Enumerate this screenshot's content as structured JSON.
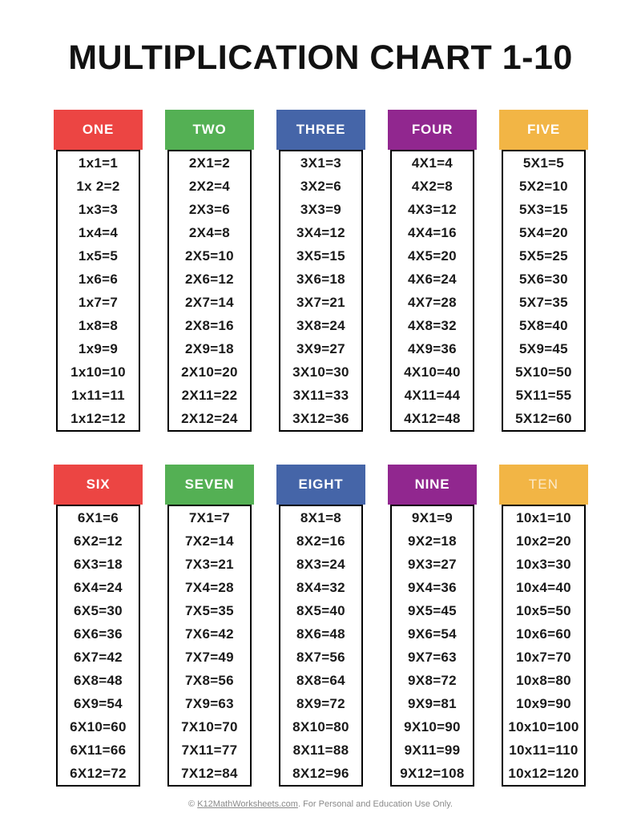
{
  "title": "MULTIPLICATION CHART 1-10",
  "colors": {
    "red": "#ec4543",
    "green": "#54b054",
    "blue": "#4565a8",
    "purple": "#91278f",
    "orange": "#f2b545"
  },
  "cards": [
    {
      "label": "ONE",
      "color": "red",
      "muted_label": false,
      "facts": [
        "1x1=1",
        "1x 2=2",
        "1x3=3",
        "1x4=4",
        "1x5=5",
        "1x6=6",
        "1x7=7",
        "1x8=8",
        "1x9=9",
        "1x10=10",
        "1x11=11",
        "1x12=12"
      ]
    },
    {
      "label": "TWO",
      "color": "green",
      "muted_label": false,
      "facts": [
        "2X1=2",
        "2X2=4",
        "2X3=6",
        "2X4=8",
        "2X5=10",
        "2X6=12",
        "2X7=14",
        "2X8=16",
        "2X9=18",
        "2X10=20",
        "2X11=22",
        "2X12=24"
      ]
    },
    {
      "label": "THREE",
      "color": "blue",
      "muted_label": false,
      "facts": [
        "3X1=3",
        "3X2=6",
        "3X3=9",
        "3X4=12",
        "3X5=15",
        "3X6=18",
        "3X7=21",
        "3X8=24",
        "3X9=27",
        "3X10=30",
        "3X11=33",
        "3X12=36"
      ]
    },
    {
      "label": "FOUR",
      "color": "purple",
      "muted_label": false,
      "facts": [
        "4X1=4",
        "4X2=8",
        "4X3=12",
        "4X4=16",
        "4X5=20",
        "4X6=24",
        "4X7=28",
        "4X8=32",
        "4X9=36",
        "4X10=40",
        "4X11=44",
        "4X12=48"
      ]
    },
    {
      "label": "FIVE",
      "color": "orange",
      "muted_label": false,
      "facts": [
        "5X1=5",
        "5X2=10",
        "5X3=15",
        "5X4=20",
        "5X5=25",
        "5X6=30",
        "5X7=35",
        "5X8=40",
        "5X9=45",
        "5X10=50",
        "5X11=55",
        "5X12=60"
      ]
    },
    {
      "label": "SIX",
      "color": "red",
      "muted_label": false,
      "facts": [
        "6X1=6",
        "6X2=12",
        "6X3=18",
        "6X4=24",
        "6X5=30",
        "6X6=36",
        "6X7=42",
        "6X8=48",
        "6X9=54",
        "6X10=60",
        "6X11=66",
        "6X12=72"
      ]
    },
    {
      "label": "SEVEN",
      "color": "green",
      "muted_label": false,
      "facts": [
        "7X1=7",
        "7X2=14",
        "7X3=21",
        "7X4=28",
        "7X5=35",
        "7X6=42",
        "7X7=49",
        "7X8=56",
        "7X9=63",
        "7X10=70",
        "7X11=77",
        "7X12=84"
      ]
    },
    {
      "label": "EIGHT",
      "color": "blue",
      "muted_label": false,
      "facts": [
        "8X1=8",
        "8X2=16",
        "8X3=24",
        "8X4=32",
        "8X5=40",
        "8X6=48",
        "8X7=56",
        "8X8=64",
        "8X9=72",
        "8X10=80",
        "8X11=88",
        "8X12=96"
      ]
    },
    {
      "label": "NINE",
      "color": "purple",
      "muted_label": false,
      "facts": [
        "9X1=9",
        "9X2=18",
        "9X3=27",
        "9X4=36",
        "9X5=45",
        "9X6=54",
        "9X7=63",
        "9X8=72",
        "9X9=81",
        "9X10=90",
        "9X11=99",
        "9X12=108"
      ]
    },
    {
      "label": "TEN",
      "color": "orange",
      "muted_label": true,
      "facts": [
        "10x1=10",
        "10x2=20",
        "10x3=30",
        "10x4=40",
        "10x5=50",
        "10x6=60",
        "10x7=70",
        "10x8=80",
        "10x9=90",
        "10x10=100",
        "10x11=110",
        "10x12=120"
      ]
    }
  ],
  "footer": {
    "prefix": "© ",
    "link_text": "K12MathWorksheets.com",
    "suffix": ". For Personal and Education Use Only."
  }
}
